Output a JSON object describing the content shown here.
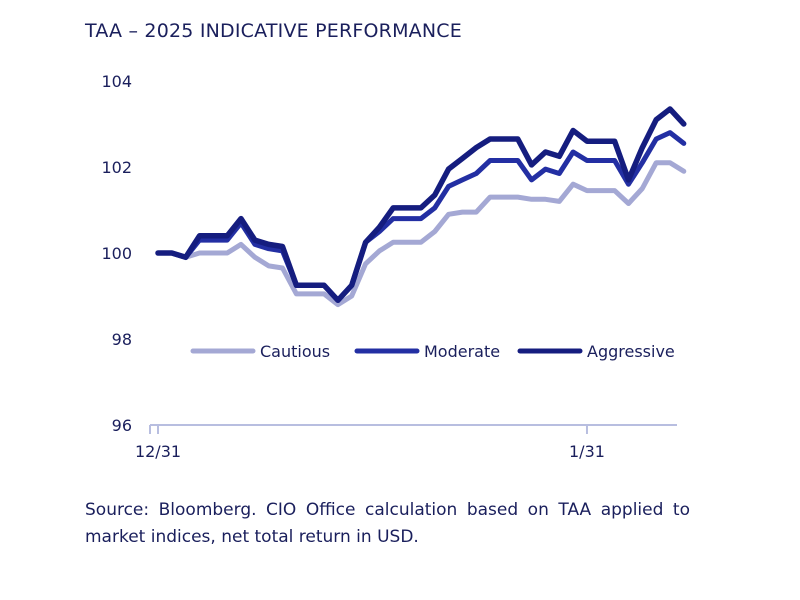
{
  "title": "TAA – 2025 INDICATIVE PERFORMANCE",
  "source_note": "Source: Bloomberg. CIO Office calculation based on TAA applied to market indices, net total return in USD.",
  "chart_data": {
    "type": "line",
    "title": "TAA – 2025 INDICATIVE PERFORMANCE",
    "xlabel": "",
    "ylabel": "",
    "ylim": [
      96,
      104
    ],
    "yticks": [
      96,
      98,
      100,
      102,
      104
    ],
    "xlim": [
      0,
      37
    ],
    "xticks": [
      {
        "index": 0,
        "label": "12/31"
      },
      {
        "index": 31,
        "label": "1/31"
      }
    ],
    "legend_position": "center",
    "colors": {
      "Cautious": "#a4a8d4",
      "Moderate": "#232fa3",
      "Aggressive": "#151d7f",
      "axis": "#b8bee0",
      "text": "#1a1f5c"
    },
    "series": [
      {
        "name": "Cautious",
        "values": [
          100.0,
          100.0,
          99.9,
          100.0,
          100.0,
          100.0,
          100.2,
          99.9,
          99.7,
          99.65,
          99.05,
          99.05,
          99.05,
          98.8,
          99.0,
          99.75,
          100.05,
          100.25,
          100.25,
          100.25,
          100.5,
          100.9,
          100.95,
          100.95,
          101.3,
          101.3,
          101.3,
          101.25,
          101.25,
          101.2,
          101.6,
          101.45,
          101.45,
          101.45,
          101.15,
          101.5,
          102.1,
          102.1,
          101.9
        ]
      },
      {
        "name": "Moderate",
        "values": [
          100.0,
          100.0,
          99.9,
          100.3,
          100.3,
          100.3,
          100.7,
          100.2,
          100.1,
          100.05,
          99.25,
          99.25,
          99.25,
          98.9,
          99.25,
          100.25,
          100.5,
          100.8,
          100.8,
          100.8,
          101.05,
          101.55,
          101.7,
          101.85,
          102.15,
          102.15,
          102.15,
          101.7,
          101.95,
          101.85,
          102.35,
          102.15,
          102.15,
          102.15,
          101.6,
          102.1,
          102.65,
          102.8,
          102.55
        ]
      },
      {
        "name": "Aggressive",
        "values": [
          100.0,
          100.0,
          99.9,
          100.4,
          100.4,
          100.4,
          100.8,
          100.3,
          100.2,
          100.15,
          99.25,
          99.25,
          99.25,
          98.9,
          99.25,
          100.25,
          100.6,
          101.05,
          101.05,
          101.05,
          101.35,
          101.95,
          102.2,
          102.45,
          102.65,
          102.65,
          102.65,
          102.05,
          102.35,
          102.25,
          102.85,
          102.6,
          102.6,
          102.6,
          101.7,
          102.45,
          103.1,
          103.35,
          103.0
        ]
      }
    ]
  }
}
